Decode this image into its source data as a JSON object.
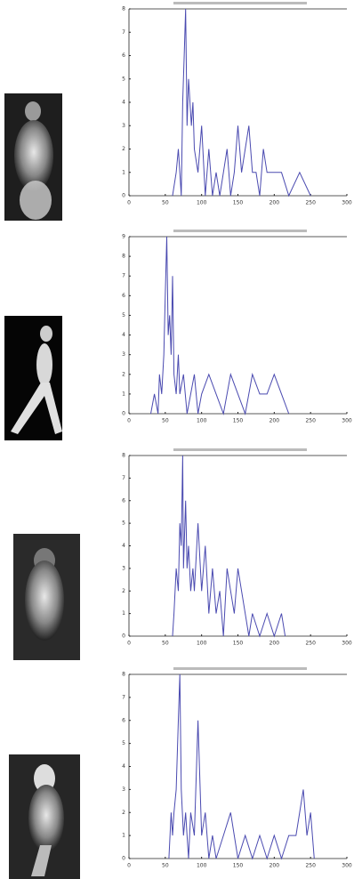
{
  "chart_data": [
    {
      "type": "line",
      "x": [
        60,
        65,
        68,
        70,
        72,
        74,
        76,
        78,
        80,
        82,
        84,
        86,
        88,
        90,
        95,
        100,
        105,
        110,
        115,
        120,
        125,
        130,
        135,
        140,
        145,
        150,
        155,
        160,
        165,
        170,
        175,
        180,
        185,
        190,
        200,
        210,
        220,
        235,
        250
      ],
      "series": [
        {
          "color": "#4a4ab0",
          "values": [
            0,
            1,
            2,
            1,
            0,
            4,
            6,
            8,
            3,
            5,
            4,
            3,
            4,
            2,
            1,
            3,
            0,
            2,
            0,
            1,
            0,
            1,
            2,
            0,
            1,
            3,
            1,
            2,
            3,
            1,
            1,
            0,
            2,
            1,
            1,
            1,
            0,
            1,
            0
          ]
        }
      ],
      "xlim": [
        0,
        300
      ],
      "xticks": [
        0,
        50,
        100,
        150,
        200,
        250,
        300
      ],
      "ylim": [
        0,
        8
      ],
      "yticks": [
        0,
        1,
        2,
        3,
        4,
        5,
        6,
        7,
        8
      ]
    },
    {
      "type": "line",
      "x": [
        30,
        35,
        40,
        42,
        45,
        48,
        50,
        52,
        54,
        56,
        58,
        60,
        62,
        65,
        68,
        70,
        75,
        80,
        85,
        90,
        95,
        100,
        110,
        120,
        130,
        140,
        150,
        160,
        170,
        180,
        190,
        200,
        210,
        220
      ],
      "series": [
        {
          "color": "#4a4ab0",
          "values": [
            0,
            1,
            0,
            2,
            1,
            3,
            6,
            9,
            4,
            5,
            3,
            7,
            2,
            1,
            3,
            1,
            2,
            0,
            1,
            2,
            0,
            1,
            2,
            1,
            0,
            2,
            1,
            0,
            2,
            1,
            1,
            2,
            1,
            0
          ]
        }
      ],
      "xlim": [
        0,
        300
      ],
      "xticks": [
        0,
        50,
        100,
        150,
        200,
        250,
        300
      ],
      "ylim": [
        0,
        9
      ],
      "yticks": [
        0,
        1,
        2,
        3,
        4,
        5,
        6,
        7,
        8,
        9
      ]
    },
    {
      "type": "line",
      "x": [
        60,
        62,
        65,
        68,
        70,
        72,
        74,
        75,
        78,
        80,
        82,
        85,
        88,
        90,
        95,
        100,
        105,
        110,
        115,
        120,
        125,
        130,
        135,
        140,
        145,
        150,
        155,
        160,
        165,
        170,
        180,
        190,
        200,
        210,
        215
      ],
      "series": [
        {
          "color": "#4a4ab0",
          "values": [
            0,
            1,
            3,
            2,
            5,
            4,
            8,
            3,
            6,
            3,
            4,
            2,
            3,
            2,
            5,
            2,
            4,
            1,
            3,
            1,
            2,
            0,
            3,
            2,
            1,
            3,
            2,
            1,
            0,
            1,
            0,
            1,
            0,
            1,
            0
          ]
        }
      ],
      "xlim": [
        0,
        300
      ],
      "xticks": [
        0,
        50,
        100,
        150,
        200,
        250,
        300
      ],
      "ylim": [
        0,
        8
      ],
      "yticks": [
        0,
        1,
        2,
        3,
        4,
        5,
        6,
        7,
        8
      ]
    },
    {
      "type": "line",
      "x": [
        55,
        58,
        60,
        62,
        65,
        68,
        70,
        72,
        75,
        78,
        80,
        82,
        85,
        90,
        95,
        100,
        105,
        110,
        115,
        120,
        130,
        140,
        150,
        160,
        170,
        180,
        190,
        200,
        210,
        220,
        230,
        240,
        245,
        250,
        255
      ],
      "series": [
        {
          "color": "#4a4ab0",
          "values": [
            0,
            2,
            1,
            2,
            3,
            6,
            8,
            3,
            1,
            2,
            1,
            0,
            2,
            1,
            6,
            1,
            2,
            0,
            1,
            0,
            1,
            2,
            0,
            1,
            0,
            1,
            0,
            1,
            0,
            1,
            1,
            3,
            1,
            2,
            0
          ]
        }
      ],
      "xlim": [
        0,
        300
      ],
      "xticks": [
        0,
        50,
        100,
        150,
        200,
        250,
        300
      ],
      "ylim": [
        0,
        8
      ],
      "yticks": [
        0,
        1,
        2,
        3,
        4,
        5,
        6,
        7,
        8
      ]
    }
  ]
}
